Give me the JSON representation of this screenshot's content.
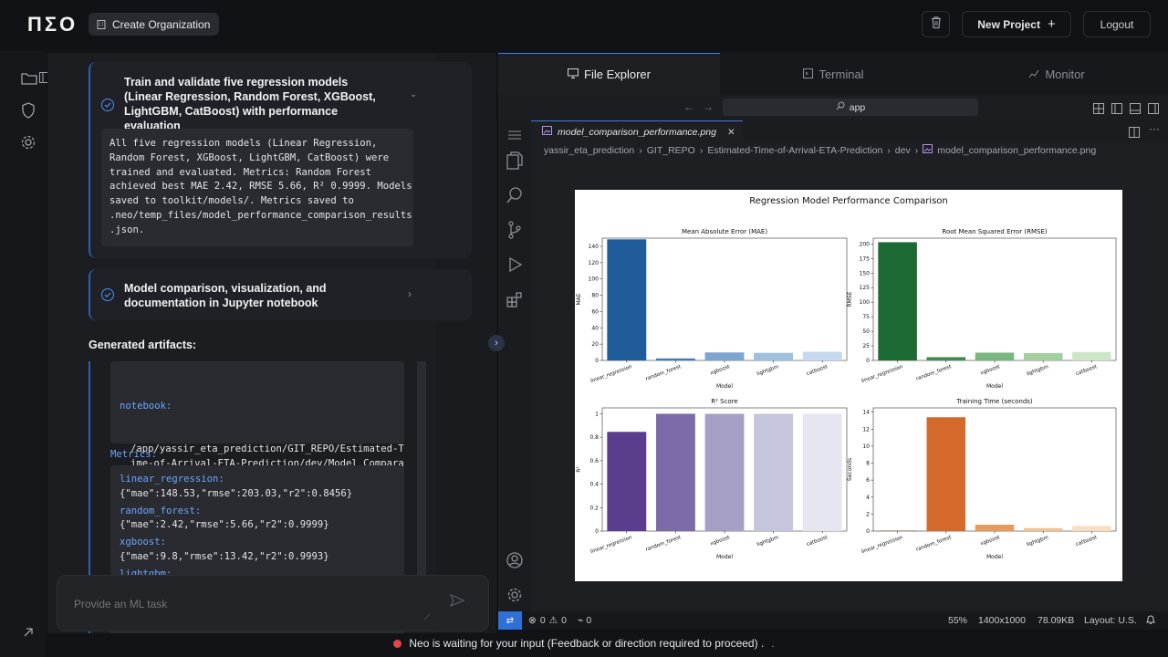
{
  "header": {
    "logo": "ПΣО",
    "create_org": "Create Organization",
    "new_project": "New Project",
    "logout": "Logout"
  },
  "tasks": [
    {
      "title": "Train and validate five regression models (Linear Regression, Random Forest, XGBoost, LightGBM, CatBoost) with performance evaluation",
      "result": "All five regression models (Linear Regression,\nRandom Forest, XGBoost, LightGBM, CatBoost) were\ntrained and evaluated. Metrics: Random Forest\nachieved best MAE 2.42, RMSE 5.66, R² 0.9999. Models\nsaved to toolkit/models/. Metrics saved to\n.neo/temp_files/model_performance_comparison_results\n.json."
    },
    {
      "title": "Model comparison, visualization, and documentation in Jupyter notebook"
    }
  ],
  "artifacts": {
    "label": "Generated artifacts:",
    "notebook_key": "notebook:",
    "notebook_path": "/app/yassir_eta_prediction/GIT_REPO/Estimated-T\nime-of-Arrival-ETA-Prediction/dev/Model_Compara\ntive_Analysis_ETA_Prediction.ipynb",
    "metrics_label": "Metrics:",
    "metrics": [
      {
        "key": "linear_regression:",
        "val": "{\"mae\":148.53,\"rmse\":203.03,\"r2\":0.8456}"
      },
      {
        "key": "random_forest:",
        "val": "{\"mae\":2.42,\"rmse\":5.66,\"r2\":0.9999}"
      },
      {
        "key": "xgboost:",
        "val": "{\"mae\":9.8,\"rmse\":13.42,\"r2\":0.9993}"
      },
      {
        "key": "lightgbm:",
        "val": ""
      }
    ]
  },
  "prompt": {
    "placeholder": "Provide an ML task"
  },
  "ide": {
    "tabs": [
      "File Explorer",
      "Terminal",
      "Monitor"
    ],
    "address": "app",
    "file_tab": "model_comparison_performance.png",
    "breadcrumbs": [
      "yassir_eta_prediction",
      "GIT_REPO",
      "Estimated-Time-of-Arrival-ETA-Prediction",
      "dev",
      "model_comparison_performance.png"
    ],
    "status": {
      "errors": "0",
      "warnings": "0",
      "ports": "0",
      "zoom": "55%",
      "dims": "1400x1000",
      "size": "78.09KB",
      "layout": "Layout: U.S."
    }
  },
  "bottom_status": "Neo is waiting for your input (Feedback or direction required to proceed) .",
  "chart_data": {
    "type": "bar",
    "title": "Regression Model Performance Comparison",
    "categories": [
      "linear_regression",
      "random_forest",
      "xgboost",
      "lightgbm",
      "catboost"
    ],
    "subplots": [
      {
        "title": "Mean Absolute Error (MAE)",
        "xlabel": "Model",
        "ylabel": "MAE",
        "values": [
          148.53,
          2.42,
          9.8,
          9.3,
          10.6
        ],
        "ylim": [
          0,
          150
        ],
        "ticks": [
          0,
          20,
          40,
          60,
          80,
          100,
          120,
          140
        ],
        "colors": [
          "#1f5c99",
          "#3f7ab0",
          "#7ba6cf",
          "#9ec0de",
          "#c4d9ee"
        ]
      },
      {
        "title": "Root Mean Squared Error (RMSE)",
        "xlabel": "Model",
        "ylabel": "RMSE",
        "values": [
          203.03,
          5.66,
          13.42,
          12.8,
          14.5
        ],
        "ylim": [
          0,
          210
        ],
        "ticks": [
          0,
          25,
          50,
          75,
          100,
          125,
          150,
          175,
          200
        ],
        "colors": [
          "#1c6b35",
          "#3d8a4e",
          "#79b77e",
          "#a3cf9f",
          "#cde7c6"
        ]
      },
      {
        "title": "R² Score",
        "xlabel": "Model",
        "ylabel": "R²",
        "values": [
          0.8456,
          0.9999,
          0.9993,
          0.9995,
          0.9992
        ],
        "ylim": [
          0,
          1.05
        ],
        "ticks": [
          0,
          0.2,
          0.4,
          0.6,
          0.8,
          1.0
        ],
        "colors": [
          "#5a3d8c",
          "#7d6aa8",
          "#a59fc6",
          "#c6c5de",
          "#e6e6f0"
        ]
      },
      {
        "title": "Training Time (seconds)",
        "xlabel": "Model",
        "ylabel": "Seconds",
        "values": [
          0.05,
          13.4,
          0.75,
          0.35,
          0.6
        ],
        "ylim": [
          0,
          14.5
        ],
        "ticks": [
          0,
          2,
          4,
          6,
          8,
          10,
          12,
          14
        ],
        "colors": [
          "#a34514",
          "#d4692b",
          "#e69a5b",
          "#f2c28e",
          "#f9dfbf"
        ]
      }
    ]
  }
}
